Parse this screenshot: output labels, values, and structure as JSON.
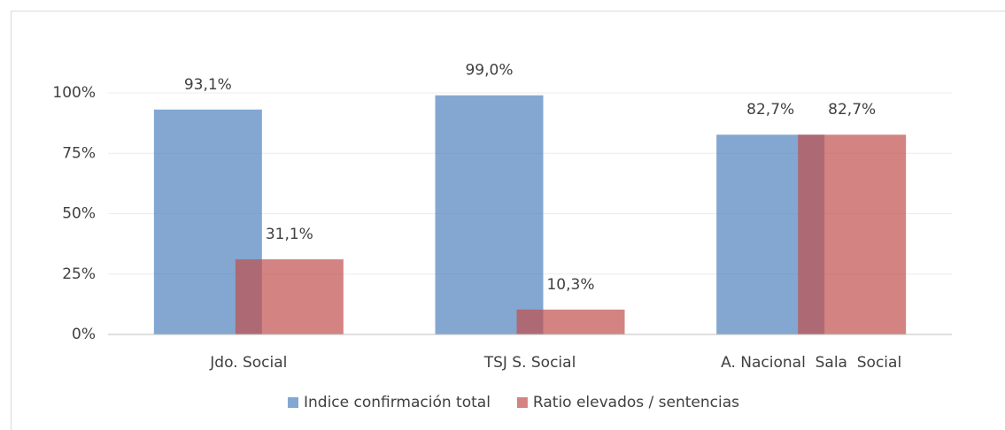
{
  "chart_data": {
    "type": "bar",
    "categories": [
      "Jdo. Social",
      "TSJ S. Social",
      "A. Nacional  Sala  Social"
    ],
    "series": [
      {
        "name": "Indice confirmación total",
        "color": "#4f81bd",
        "values": [
          93.1,
          99.0,
          82.7
        ],
        "value_labels": [
          "93,1%",
          "99,0%",
          "82,7%"
        ]
      },
      {
        "name": "Ratio elevados / sentencias",
        "color": "#c0504d",
        "values": [
          31.1,
          10.3,
          82.7
        ],
        "value_labels": [
          "31,1%",
          "10,3%",
          "82,7%"
        ]
      }
    ],
    "ylim": [
      0,
      100
    ],
    "yticks": [
      {
        "value": 0,
        "label": "0%"
      },
      {
        "value": 25,
        "label": "25%"
      },
      {
        "value": 50,
        "label": "50%"
      },
      {
        "value": 75,
        "label": "75%"
      },
      {
        "value": 100,
        "label": "100%"
      }
    ],
    "grid": true,
    "legend": "bottom"
  }
}
